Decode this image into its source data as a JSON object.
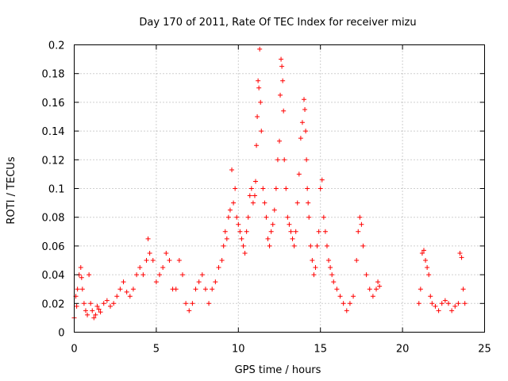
{
  "chart_data": {
    "type": "scatter",
    "title": "Day 170 of 2011, Rate Of TEC Index for receiver mizu",
    "xlabel": "GPS time / hours",
    "ylabel": "ROTI / TECUs",
    "xlim": [
      0,
      25
    ],
    "ylim": [
      0,
      0.2
    ],
    "xticks": [
      0,
      5,
      10,
      15,
      20,
      25
    ],
    "xtick_labels": [
      "0",
      "5",
      "10",
      "15",
      "20",
      "25"
    ],
    "yticks": [
      0,
      0.02,
      0.04,
      0.06,
      0.08,
      0.1,
      0.12,
      0.14,
      0.16,
      0.18,
      0.2
    ],
    "ytick_labels": [
      "0",
      "0.02",
      "0.04",
      "0.06",
      "0.08",
      "0.1",
      "0.12",
      "0.14",
      "0.16",
      "0.18",
      "0.2"
    ],
    "grid": true,
    "marker": "plus",
    "color": "#ff0000",
    "series": [
      {
        "x": [
          0.0,
          0.1,
          0.15,
          0.2,
          0.3,
          0.4,
          0.45,
          0.5,
          0.6,
          0.7,
          0.8,
          0.9,
          1.0,
          1.1,
          1.2,
          1.3,
          1.4,
          1.5,
          1.6,
          1.8,
          2.0,
          2.2,
          2.4,
          2.6,
          2.8,
          3.0,
          3.2,
          3.4,
          3.6,
          3.8,
          4.0,
          4.2,
          4.4,
          4.5,
          4.6,
          4.8,
          5.0,
          5.2,
          5.4,
          5.6,
          5.8,
          6.0,
          6.2,
          6.4,
          6.6,
          6.8,
          7.0,
          7.2,
          7.4,
          7.6,
          7.8,
          8.0,
          8.2,
          8.4,
          8.6,
          8.8,
          9.0,
          9.1,
          9.2,
          9.3,
          9.4,
          9.5,
          9.6,
          9.7,
          9.8,
          9.9,
          10.0,
          10.1,
          10.2,
          10.3,
          10.4,
          10.5,
          10.6,
          10.7,
          10.8,
          10.9,
          11.0,
          11.05,
          11.1,
          11.15,
          11.2,
          11.25,
          11.3,
          11.35,
          11.4,
          11.5,
          11.6,
          11.7,
          11.8,
          11.9,
          12.0,
          12.1,
          12.2,
          12.3,
          12.4,
          12.5,
          12.55,
          12.6,
          12.65,
          12.7,
          12.75,
          12.8,
          12.9,
          13.0,
          13.1,
          13.2,
          13.3,
          13.4,
          13.5,
          13.6,
          13.7,
          13.8,
          13.9,
          14.0,
          14.05,
          14.1,
          14.15,
          14.2,
          14.25,
          14.3,
          14.4,
          14.5,
          14.6,
          14.7,
          14.8,
          14.9,
          15.0,
          15.1,
          15.2,
          15.3,
          15.4,
          15.5,
          15.6,
          15.7,
          15.8,
          16.0,
          16.2,
          16.4,
          16.6,
          16.8,
          17.0,
          17.2,
          17.3,
          17.4,
          17.5,
          17.6,
          17.8,
          18.0,
          18.2,
          18.4,
          18.5,
          18.6,
          21.0,
          21.1,
          21.2,
          21.3,
          21.4,
          21.5,
          21.6,
          21.7,
          21.8,
          22.0,
          22.2,
          22.4,
          22.6,
          22.8,
          23.0,
          23.2,
          23.4,
          23.5,
          23.6,
          23.7,
          23.8
        ],
        "y": [
          0.01,
          0.025,
          0.018,
          0.03,
          0.04,
          0.045,
          0.038,
          0.03,
          0.02,
          0.015,
          0.012,
          0.04,
          0.02,
          0.015,
          0.01,
          0.012,
          0.018,
          0.016,
          0.014,
          0.02,
          0.022,
          0.018,
          0.02,
          0.025,
          0.03,
          0.035,
          0.028,
          0.025,
          0.03,
          0.04,
          0.045,
          0.04,
          0.05,
          0.065,
          0.055,
          0.05,
          0.035,
          0.04,
          0.045,
          0.055,
          0.05,
          0.03,
          0.03,
          0.05,
          0.04,
          0.02,
          0.015,
          0.02,
          0.03,
          0.035,
          0.04,
          0.03,
          0.02,
          0.03,
          0.035,
          0.045,
          0.05,
          0.06,
          0.07,
          0.065,
          0.08,
          0.085,
          0.113,
          0.09,
          0.1,
          0.08,
          0.075,
          0.07,
          0.065,
          0.06,
          0.055,
          0.07,
          0.08,
          0.095,
          0.1,
          0.09,
          0.095,
          0.105,
          0.13,
          0.15,
          0.175,
          0.17,
          0.197,
          0.16,
          0.14,
          0.1,
          0.09,
          0.08,
          0.065,
          0.06,
          0.07,
          0.075,
          0.085,
          0.1,
          0.12,
          0.133,
          0.165,
          0.19,
          0.185,
          0.175,
          0.154,
          0.12,
          0.1,
          0.08,
          0.075,
          0.07,
          0.065,
          0.06,
          0.07,
          0.09,
          0.11,
          0.135,
          0.146,
          0.162,
          0.155,
          0.14,
          0.12,
          0.1,
          0.09,
          0.08,
          0.06,
          0.05,
          0.04,
          0.045,
          0.06,
          0.07,
          0.1,
          0.106,
          0.08,
          0.07,
          0.06,
          0.05,
          0.045,
          0.04,
          0.035,
          0.03,
          0.025,
          0.02,
          0.015,
          0.02,
          0.025,
          0.05,
          0.07,
          0.08,
          0.075,
          0.06,
          0.04,
          0.03,
          0.025,
          0.03,
          0.035,
          0.032,
          0.02,
          0.03,
          0.055,
          0.057,
          0.05,
          0.045,
          0.04,
          0.025,
          0.02,
          0.018,
          0.015,
          0.02,
          0.022,
          0.02,
          0.015,
          0.018,
          0.02,
          0.055,
          0.052,
          0.03,
          0.02
        ]
      }
    ]
  }
}
